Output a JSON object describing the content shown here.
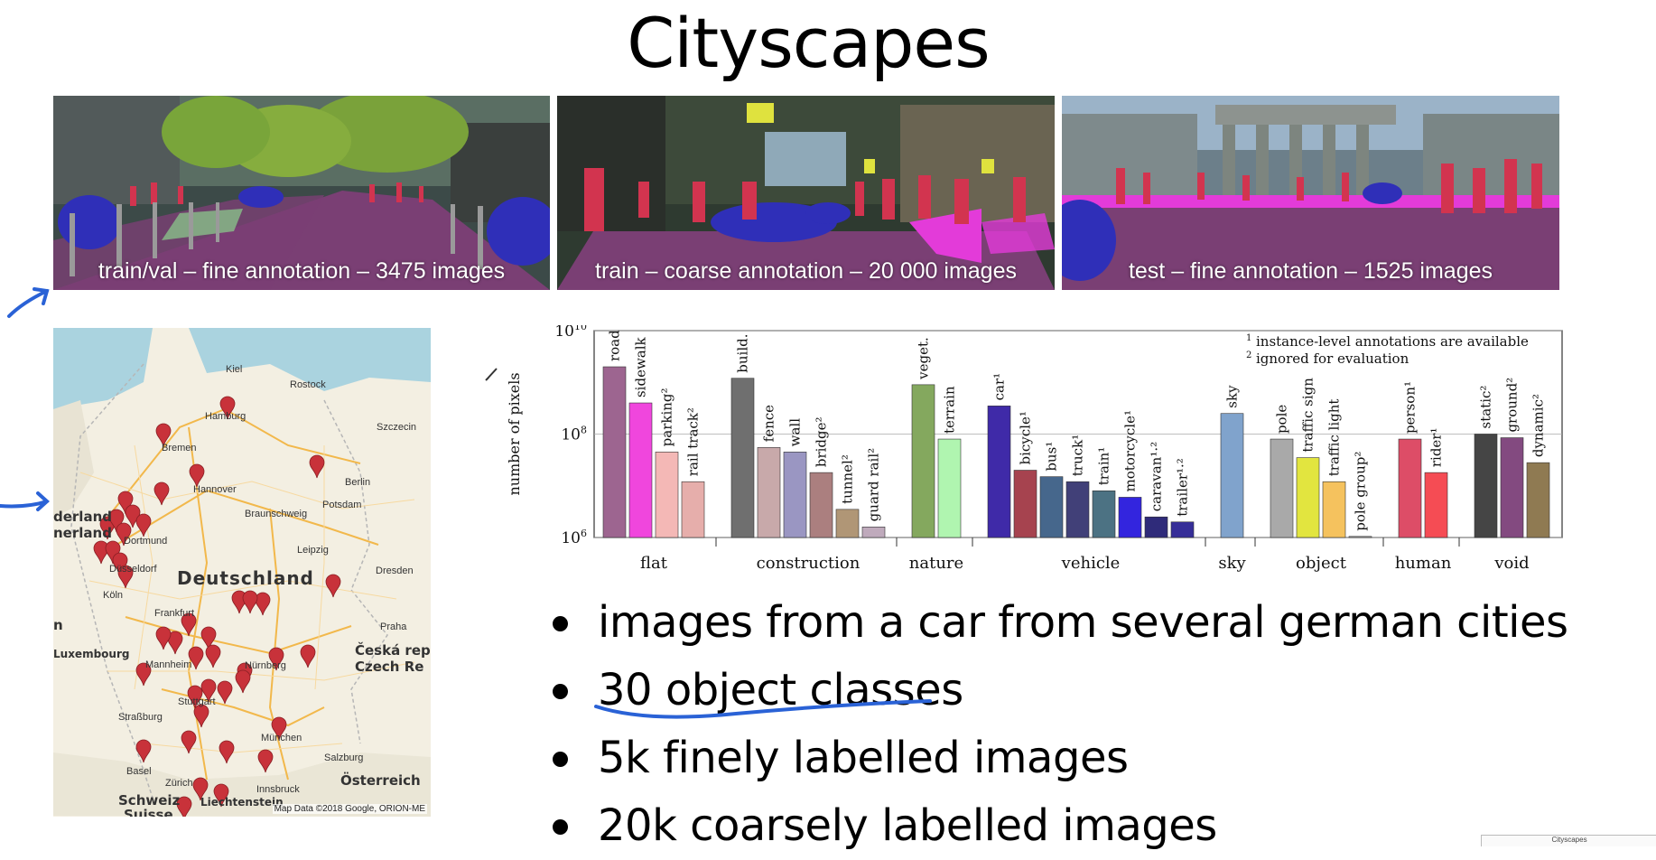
{
  "slide": {
    "title": "Cityscapes"
  },
  "photos": [
    {
      "caption": "train/val – fine annotation – 3475 images"
    },
    {
      "caption": "train – coarse annotation – 20 000 images"
    },
    {
      "caption": "test – fine annotation – 1525 images"
    }
  ],
  "map": {
    "country_label": "Deutschland",
    "credit": "Map Data ©2018 Google, ORION-ME",
    "places": [
      "Kiel",
      "Rostock",
      "Hamburg",
      "Bremen",
      "Szczecin",
      "Berlin",
      "Potsdam",
      "Hannover",
      "Braunschweig",
      "Dortmund",
      "Düsseldorf",
      "Köln",
      "Leipzig",
      "Dresden",
      "Frankfurt",
      "Mannheim",
      "Nürnberg",
      "Stuttgart",
      "Straßburg",
      "München",
      "Basel",
      "Zürich",
      "Salzburg",
      "Innsbruck",
      "Liechtenstein",
      "Luxembourg",
      "Praha",
      "Österreich",
      "Schweiz",
      "Suisse",
      "Česká rep",
      "Czech Re",
      "derland",
      "nerland",
      "n"
    ]
  },
  "chart_data": {
    "type": "bar",
    "ylabel": "number of pixels",
    "yscale": "log",
    "ylim": [
      1000000,
      10000000000
    ],
    "yticks": [
      "10^6",
      "10^8",
      "10^10"
    ],
    "grid": "horizontal at decades",
    "legend_notes": [
      "1 instance-level annotations are available",
      "2 ignored for evaluation"
    ],
    "groups": [
      {
        "name": "flat",
        "categories": [
          {
            "label": "road",
            "value": 2000000000,
            "color": "#9d6590"
          },
          {
            "label": "sidewalk",
            "value": 400000000,
            "color": "#f046dd"
          },
          {
            "label": "parking²",
            "value": 45000000,
            "color": "#f4b8b6"
          },
          {
            "label": "rail track²",
            "value": 12000000,
            "color": "#e6aeab"
          }
        ]
      },
      {
        "name": "construction",
        "categories": [
          {
            "label": "build.",
            "value": 1200000000,
            "color": "#6f6f6f"
          },
          {
            "label": "fence",
            "value": 55000000,
            "color": "#c8a9aa"
          },
          {
            "label": "wall",
            "value": 45000000,
            "color": "#9a96c2"
          },
          {
            "label": "bridge²",
            "value": 18000000,
            "color": "#ab7f7f"
          },
          {
            "label": "tunnel²",
            "value": 3500000,
            "color": "#b09676"
          },
          {
            "label": "guard rail²",
            "value": 1600000,
            "color": "#bfaabc"
          }
        ]
      },
      {
        "name": "nature",
        "categories": [
          {
            "label": "veget.",
            "value": 900000000,
            "color": "#84a85e"
          },
          {
            "label": "terrain",
            "value": 80000000,
            "color": "#b0f5b0"
          }
        ]
      },
      {
        "name": "vehicle",
        "categories": [
          {
            "label": "car¹",
            "value": 350000000,
            "color": "#3f2aa8"
          },
          {
            "label": "bicycle¹",
            "value": 20000000,
            "color": "#a6434f"
          },
          {
            "label": "bus¹",
            "value": 15000000,
            "color": "#46678c"
          },
          {
            "label": "truck¹",
            "value": 12000000,
            "color": "#414078"
          },
          {
            "label": "train¹",
            "value": 8000000,
            "color": "#4c7283"
          },
          {
            "label": "motorcycle¹",
            "value": 6000000,
            "color": "#3325de"
          },
          {
            "label": "caravan¹·²",
            "value": 2500000,
            "color": "#2f2b7a"
          },
          {
            "label": "trailer¹·²",
            "value": 2000000,
            "color": "#362e98"
          }
        ]
      },
      {
        "name": "sky",
        "categories": [
          {
            "label": "sky",
            "value": 250000000,
            "color": "#80a3cc"
          }
        ]
      },
      {
        "name": "object",
        "categories": [
          {
            "label": "pole",
            "value": 80000000,
            "color": "#a9a9a9"
          },
          {
            "label": "traffic sign",
            "value": 35000000,
            "color": "#e2e53f"
          },
          {
            "label": "traffic light",
            "value": 12000000,
            "color": "#f5c25e"
          },
          {
            "label": "pole group²",
            "value": 1050000,
            "color": "#a8a8a8"
          }
        ]
      },
      {
        "name": "human",
        "categories": [
          {
            "label": "person¹",
            "value": 80000000,
            "color": "#dd4d67"
          },
          {
            "label": "rider¹",
            "value": 18000000,
            "color": "#f54c54"
          }
        ]
      },
      {
        "name": "void",
        "categories": [
          {
            "label": "static²",
            "value": 100000000,
            "color": "#454545"
          },
          {
            "label": "ground²",
            "value": 85000000,
            "color": "#834a80"
          },
          {
            "label": "dynamic²",
            "value": 28000000,
            "color": "#8f7a52"
          }
        ]
      }
    ]
  },
  "bullets": [
    "images from a car from several german cities",
    "30 object classes",
    "5k finely labelled images",
    "20k coarsely labelled images"
  ],
  "thumbnail_tab": "Cityscapes",
  "colors": {
    "annotation_purple": "#7a3f74",
    "pedestrian_red": "#d2344f",
    "sidewalk_magenta": "#e33bd9",
    "vehicle_blue": "#2f2fb8",
    "ink_blue": "#2a62d6",
    "map_pin": "#c8323a"
  }
}
